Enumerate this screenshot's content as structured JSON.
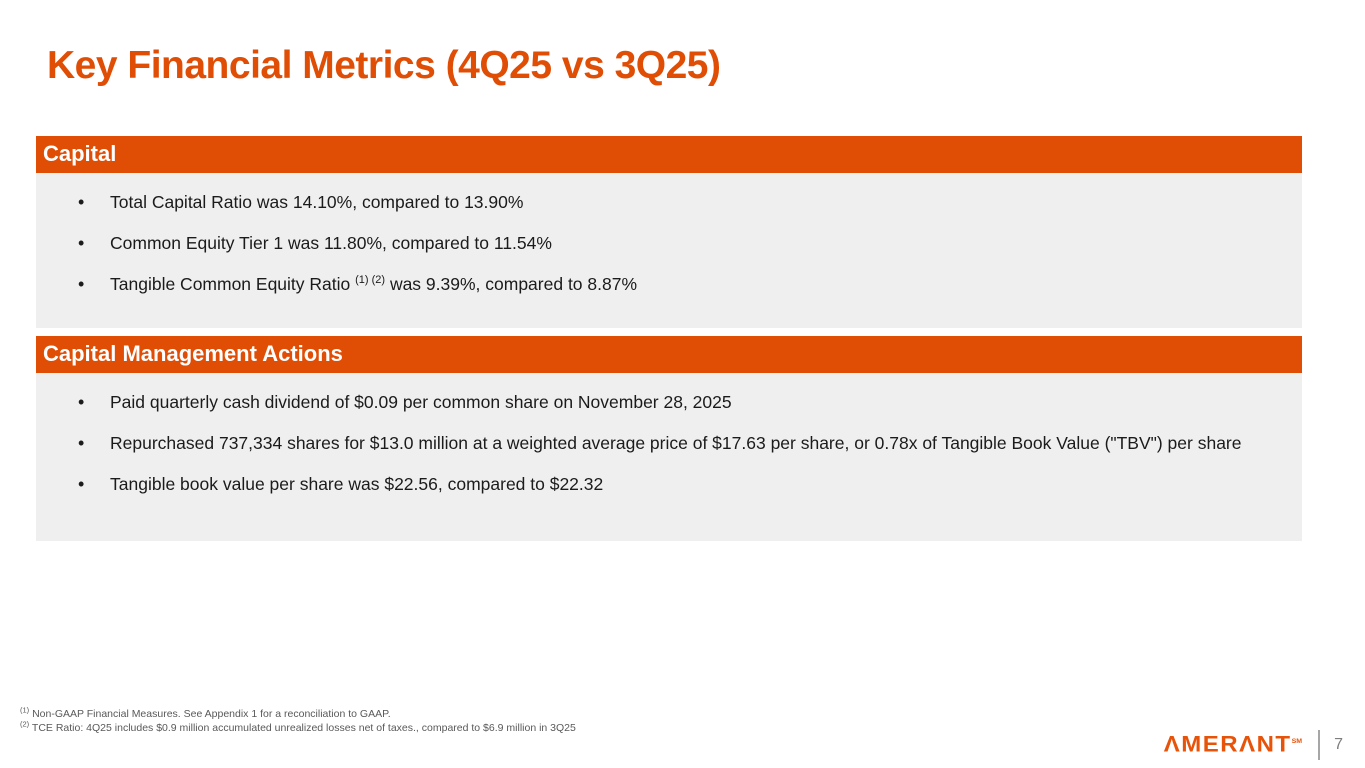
{
  "slide": {
    "title": "Key Financial Metrics (4Q25 vs 3Q25)"
  },
  "sections": [
    {
      "header": "Capital",
      "bullets": [
        {
          "pre": "Total Capital Ratio was 14.10%, compared to 13.90%",
          "sup": "",
          "post": ""
        },
        {
          "pre": "Common Equity Tier 1 was 11.80%, compared to 11.54%",
          "sup": "",
          "post": ""
        },
        {
          "pre": "Tangible Common Equity Ratio ",
          "sup": "(1) (2)",
          "post": " was 9.39%, compared to 8.87%"
        }
      ]
    },
    {
      "header": "Capital Management Actions",
      "bullets": [
        {
          "pre": "Paid quarterly cash dividend of $0.09 per common share on November 28, 2025",
          "sup": "",
          "post": ""
        },
        {
          "pre": "Repurchased 737,334 shares for $13.0 million at a weighted average price of $17.63 per share, or 0.78x of Tangible Book Value (\"TBV\") per share",
          "sup": "",
          "post": ""
        },
        {
          "pre": "Tangible book value per share was $22.56, compared to $22.32",
          "sup": "",
          "post": ""
        }
      ]
    }
  ],
  "footnotes": [
    {
      "marker": "(1)",
      "text": " Non-GAAP Financial Measures. See Appendix 1 for a reconciliation to GAAP."
    },
    {
      "marker": "(2)",
      "text": " TCE Ratio: 4Q25 includes $0.9 million accumulated unrealized losses net of taxes., compared to $6.9 million in 3Q25"
    }
  ],
  "footer": {
    "logo_text": "ΛMERΛNT",
    "logo_mark": "SM",
    "page_number": "7"
  },
  "colors": {
    "accent_orange": "#E04E06",
    "section_body_gray": "#F0EFEF",
    "footnote_gray": "#595959"
  }
}
